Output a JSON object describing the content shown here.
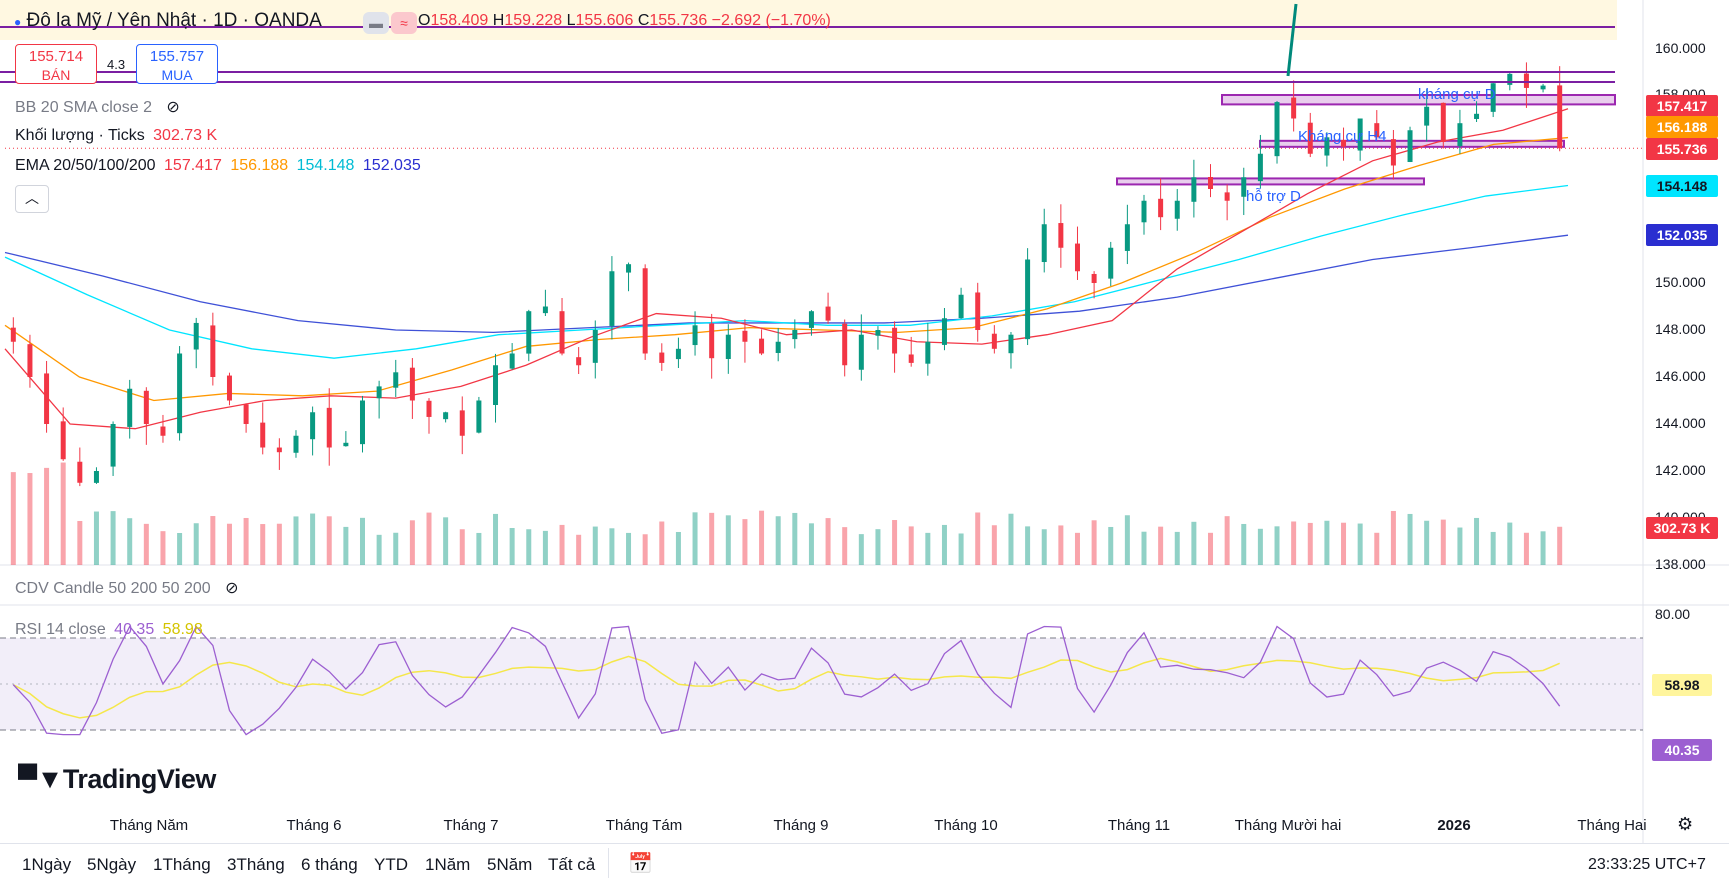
{
  "header": {
    "title": "Đô la Mỹ / Yên Nhật · 1D · OANDA",
    "ohlc": {
      "o_label": "O",
      "o": "158.409",
      "h_label": "H",
      "h": "159.228",
      "l_label": "L",
      "l": "155.606",
      "c_label": "C",
      "c": "155.736",
      "change": "−2.692 (−1.70%)"
    },
    "sell_price": "155.714",
    "sell_label": "BÁN",
    "spread": "4.3",
    "buy_price": "155.757",
    "buy_label": "MUA"
  },
  "indicators": {
    "bb": "BB 20 SMA close 2",
    "volume_label": "Khối lượng · Ticks",
    "volume_value": "302.73 K",
    "ema_label": "EMA 20/50/100/200",
    "ema20": "157.417",
    "ema50": "156.188",
    "ema100": "154.148",
    "ema200": "152.035",
    "cdv": "CDV Candle 50 200 50 200",
    "rsi_label": "RSI 14 close",
    "rsi_value": "40.35",
    "rsi_ma": "58.98"
  },
  "annotations": {
    "resistance_d": "kháng cự D",
    "resistance_h4": "Kháng cự H4",
    "support_d": "hỗ trợ D"
  },
  "price_axis": {
    "labels": [
      "160.000",
      "158.000",
      "150.000",
      "148.000",
      "146.000",
      "144.000",
      "142.000",
      "140.000",
      "138.000"
    ],
    "tags": {
      "ema20": "157.417",
      "ema50": "156.188",
      "last": "155.736",
      "ema100": "154.148",
      "ema200": "152.035",
      "volume": "302.73 K"
    }
  },
  "rsi_axis": {
    "top": "80.00",
    "ma_tag": "58.98",
    "rsi_tag": "40.35"
  },
  "time_axis": [
    "Tháng Năm",
    "Tháng 6",
    "Tháng 7",
    "Tháng Tám",
    "Tháng 9",
    "Tháng 10",
    "Tháng 11",
    "Tháng Mười hai",
    "2026",
    "Tháng Hai"
  ],
  "timeframes": [
    "1Ngày",
    "5Ngày",
    "1Tháng",
    "3Tháng",
    "6 tháng",
    "YTD",
    "1Năm",
    "5Năm",
    "Tất cả"
  ],
  "clock": "23:33:25 UTC+7",
  "brand": "TradingView",
  "colors": {
    "up": "#089981",
    "down": "#f23645",
    "ema20": "#f23645",
    "ema50": "#ff9800",
    "ema100": "#00e5ff",
    "ema200": "#3f51d7",
    "rsi": "#9c5fd1",
    "rsi_ma": "#f5e74a",
    "zone": "#9c27b0"
  },
  "chart_data": {
    "type": "candlestick",
    "symbol": "USD/JPY",
    "interval": "1D",
    "ylim": [
      138,
      161
    ],
    "x_labels": [
      "Tháng Năm",
      "Tháng 6",
      "Tháng 7",
      "Tháng Tám",
      "Tháng 9",
      "Tháng 10",
      "Tháng 11",
      "Tháng Mười hai",
      "2026",
      "Tháng Hai"
    ],
    "last": {
      "open": 158.409,
      "high": 159.228,
      "low": 155.606,
      "close": 155.736
    },
    "close_path": [
      147.5,
      146,
      144,
      142.5,
      141.5,
      142,
      144,
      145.5,
      144,
      143.5,
      147,
      148.3,
      146,
      145,
      144,
      143,
      142.8,
      143.5,
      144.5,
      143,
      143.2,
      145,
      145.6,
      146.2,
      145,
      144.3,
      144.5,
      143.5,
      145,
      146.5,
      147,
      148.8,
      149,
      147,
      146.5,
      148,
      150.5,
      150.8,
      147,
      146.6,
      147.2,
      148.2,
      146.8,
      147.8,
      147.5,
      147,
      147.5,
      148,
      148.8,
      148.4,
      146.5,
      147.8,
      148,
      147,
      146.6,
      147.5,
      148.5,
      149.5,
      148,
      147.2,
      147.8,
      151,
      152.5,
      151.5,
      150.5,
      150,
      151.5,
      152.5,
      153.5,
      152.8,
      153.5,
      154.5,
      154,
      153.5,
      154.5,
      155.5,
      157.7,
      157,
      155.5,
      156.2,
      155.8,
      157,
      156.2,
      155,
      156.5,
      157.5,
      156,
      156.8,
      157.2,
      158.5,
      158.9,
      158.3,
      158.4,
      155.736
    ],
    "ema20": [
      147.2,
      144,
      143.8,
      144.5,
      145,
      145.2,
      145.1,
      145.6,
      146.5,
      147.7,
      148.7,
      148.5,
      147.8,
      148,
      147.5,
      147.4,
      147.8,
      148.4,
      150.6,
      152.2,
      153.8,
      155.2,
      156,
      156.5,
      157.417
    ],
    "ema50": [
      148.2,
      146,
      145,
      145.3,
      145.2,
      145.4,
      146.3,
      147.3,
      147.6,
      147.8,
      148.1,
      148,
      147.9,
      148.1,
      148.9,
      150,
      151.3,
      152.8,
      154,
      155,
      155.9,
      156.188
    ],
    "ema100": [
      151.1,
      149.5,
      148,
      147.2,
      146.8,
      147.2,
      147.8,
      148,
      148.2,
      148.4,
      148.2,
      148.2,
      148.6,
      149.2,
      150.1,
      151,
      152,
      152.9,
      153.7,
      154.148
    ],
    "ema200": [
      151.3,
      150.3,
      149.2,
      148.4,
      148,
      147.9,
      148.1,
      148.3,
      148.3,
      148.3,
      148.5,
      148.8,
      149.4,
      150.2,
      151,
      151.5,
      152.035
    ],
    "rsi_last": 40.35,
    "rsi_ma_last": 58.98,
    "rsi_ylim": [
      0,
      80
    ],
    "rsi_bands": [
      70,
      30
    ],
    "volume_last": "302.73 K",
    "zones": [
      {
        "label": "kháng cự D",
        "top": 158,
        "bottom": 157.6
      },
      {
        "label": "Kháng cự H4",
        "top": 156.05,
        "bottom": 155.8
      },
      {
        "label": "hỗ trợ D",
        "top": 154.45,
        "bottom": 154.25
      }
    ]
  }
}
